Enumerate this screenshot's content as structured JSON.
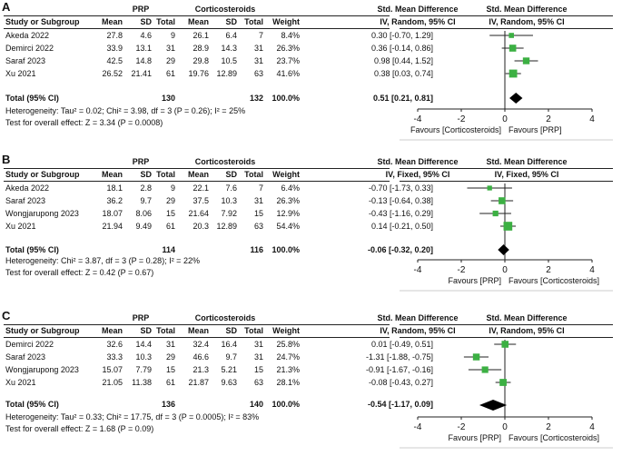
{
  "column_headers": {
    "group1": "PRP",
    "group2": "Corticosteroids",
    "study": "Study or Subgroup",
    "mean": "Mean",
    "sd": "SD",
    "total": "Total",
    "weight": "Weight",
    "smd": "Std. Mean Difference"
  },
  "panels": [
    {
      "label": "A",
      "method": "IV, Random, 95% CI",
      "rows": [
        {
          "study": "Akeda 2022",
          "m1": "27.8",
          "sd1": "4.6",
          "n1": "9",
          "m2": "26.1",
          "sd2": "6.4",
          "n2": "7",
          "w": "8.4%",
          "ci": "0.30 [-0.70, 1.29]"
        },
        {
          "study": "Demirci 2022",
          "m1": "33.9",
          "sd1": "13.1",
          "n1": "31",
          "m2": "28.9",
          "sd2": "14.3",
          "n2": "31",
          "w": "26.3%",
          "ci": "0.36 [-0.14, 0.86]"
        },
        {
          "study": "Saraf 2023",
          "m1": "42.5",
          "sd1": "14.8",
          "n1": "29",
          "m2": "29.8",
          "sd2": "10.5",
          "n2": "31",
          "w": "23.7%",
          "ci": "0.98 [0.44, 1.52]"
        },
        {
          "study": "Xu 2021",
          "m1": "26.52",
          "sd1": "21.41",
          "n1": "61",
          "m2": "19.76",
          "sd2": "12.89",
          "n2": "63",
          "w": "41.6%",
          "ci": "0.38 [0.03, 0.74]"
        }
      ],
      "total": {
        "label": "Total (95% CI)",
        "n1": "130",
        "n2": "132",
        "w": "100.0%",
        "ci": "0.51 [0.21, 0.81]"
      },
      "heterogeneity": "Heterogeneity: Tau² = 0.02; Chi² = 3.98, df = 3 (P = 0.26); I² = 25%",
      "overall": "Test for overall effect: Z = 3.34 (P = 0.0008)",
      "favours_left": "Favours [Corticosteroids]",
      "favours_right": "Favours [PRP]"
    },
    {
      "label": "B",
      "method": "IV, Fixed, 95% CI",
      "rows": [
        {
          "study": "Akeda 2022",
          "m1": "18.1",
          "sd1": "2.8",
          "n1": "9",
          "m2": "22.1",
          "sd2": "7.6",
          "n2": "7",
          "w": "6.4%",
          "ci": "-0.70 [-1.73, 0.33]"
        },
        {
          "study": "Saraf 2023",
          "m1": "36.2",
          "sd1": "9.7",
          "n1": "29",
          "m2": "37.5",
          "sd2": "10.3",
          "n2": "31",
          "w": "26.3%",
          "ci": "-0.13 [-0.64, 0.38]"
        },
        {
          "study": "Wongjarupong 2023",
          "m1": "18.07",
          "sd1": "8.06",
          "n1": "15",
          "m2": "21.64",
          "sd2": "7.92",
          "n2": "15",
          "w": "12.9%",
          "ci": "-0.43 [-1.16, 0.29]"
        },
        {
          "study": "Xu 2021",
          "m1": "21.94",
          "sd1": "9.49",
          "n1": "61",
          "m2": "20.3",
          "sd2": "12.89",
          "n2": "63",
          "w": "54.4%",
          "ci": "0.14 [-0.21, 0.50]"
        }
      ],
      "total": {
        "label": "Total (95% CI)",
        "n1": "114",
        "n2": "116",
        "w": "100.0%",
        "ci": "-0.06 [-0.32, 0.20]"
      },
      "heterogeneity": "Heterogeneity: Chi² = 3.87, df = 3 (P = 0.28); I² = 22%",
      "overall": "Test for overall effect: Z = 0.42 (P = 0.67)",
      "favours_left": "Favours [PRP]",
      "favours_right": "Favours [Corticosteroids]"
    },
    {
      "label": "C",
      "method": "IV, Random, 95% CI",
      "rows": [
        {
          "study": "Demirci 2022",
          "m1": "32.6",
          "sd1": "14.4",
          "n1": "31",
          "m2": "32.4",
          "sd2": "16.4",
          "n2": "31",
          "w": "25.8%",
          "ci": "0.01 [-0.49, 0.51]"
        },
        {
          "study": "Saraf 2023",
          "m1": "33.3",
          "sd1": "10.3",
          "n1": "29",
          "m2": "46.6",
          "sd2": "9.7",
          "n2": "31",
          "w": "24.7%",
          "ci": "-1.31 [-1.88, -0.75]"
        },
        {
          "study": "Wongjarupong 2023",
          "m1": "15.07",
          "sd1": "7.79",
          "n1": "15",
          "m2": "21.3",
          "sd2": "5.21",
          "n2": "15",
          "w": "21.3%",
          "ci": "-0.91 [-1.67, -0.16]"
        },
        {
          "study": "Xu 2021",
          "m1": "21.05",
          "sd1": "11.38",
          "n1": "61",
          "m2": "21.87",
          "sd2": "9.63",
          "n2": "63",
          "w": "28.1%",
          "ci": "-0.08 [-0.43, 0.27]"
        }
      ],
      "total": {
        "label": "Total (95% CI)",
        "n1": "136",
        "n2": "140",
        "w": "100.0%",
        "ci": "-0.54 [-1.17, 0.09]"
      },
      "heterogeneity": "Heterogeneity: Tau² = 0.33; Chi² = 17.75, df = 3 (P = 0.0005); I² = 83%",
      "overall": "Test for overall effect: Z = 1.68 (P = 0.09)",
      "favours_left": "Favours [PRP]",
      "favours_right": "Favours [Corticosteroids]"
    }
  ],
  "chart_data": [
    {
      "type": "forest",
      "title": "A",
      "xlabel": "Std. Mean Difference IV, Random, 95% CI",
      "xlim": [
        -4,
        4
      ],
      "ticks": [
        -4,
        -2,
        0,
        2,
        4
      ],
      "studies": [
        "Akeda 2022",
        "Demirci 2022",
        "Saraf 2023",
        "Xu 2021"
      ],
      "estimates": [
        0.3,
        0.36,
        0.98,
        0.38
      ],
      "lower": [
        -0.7,
        -0.14,
        0.44,
        0.03
      ],
      "upper": [
        1.29,
        0.86,
        1.52,
        0.74
      ],
      "weights": [
        8.4,
        26.3,
        23.7,
        41.6
      ],
      "pooled": {
        "estimate": 0.51,
        "lower": 0.21,
        "upper": 0.81
      },
      "colors": {
        "marker": "#3cb043",
        "diamond": "#000000"
      }
    },
    {
      "type": "forest",
      "title": "B",
      "xlabel": "Std. Mean Difference IV, Fixed, 95% CI",
      "xlim": [
        -4,
        4
      ],
      "ticks": [
        -4,
        -2,
        0,
        2,
        4
      ],
      "studies": [
        "Akeda 2022",
        "Saraf 2023",
        "Wongjarupong 2023",
        "Xu 2021"
      ],
      "estimates": [
        -0.7,
        -0.13,
        -0.43,
        0.14
      ],
      "lower": [
        -1.73,
        -0.64,
        -1.16,
        -0.21
      ],
      "upper": [
        0.33,
        0.38,
        0.29,
        0.5
      ],
      "weights": [
        6.4,
        26.3,
        12.9,
        54.4
      ],
      "pooled": {
        "estimate": -0.06,
        "lower": -0.32,
        "upper": 0.2
      },
      "colors": {
        "marker": "#3cb043",
        "diamond": "#000000"
      }
    },
    {
      "type": "forest",
      "title": "C",
      "xlabel": "Std. Mean Difference IV, Random, 95% CI",
      "xlim": [
        -4,
        4
      ],
      "ticks": [
        -4,
        -2,
        0,
        2,
        4
      ],
      "studies": [
        "Demirci 2022",
        "Saraf 2023",
        "Wongjarupong 2023",
        "Xu 2021"
      ],
      "estimates": [
        0.01,
        -1.31,
        -0.91,
        -0.08
      ],
      "lower": [
        -0.49,
        -1.88,
        -1.67,
        -0.43
      ],
      "upper": [
        0.51,
        -0.75,
        -0.16,
        0.27
      ],
      "weights": [
        25.8,
        24.7,
        21.3,
        28.1
      ],
      "pooled": {
        "estimate": -0.54,
        "lower": -1.17,
        "upper": 0.09
      },
      "colors": {
        "marker": "#3cb043",
        "diamond": "#000000"
      }
    }
  ]
}
